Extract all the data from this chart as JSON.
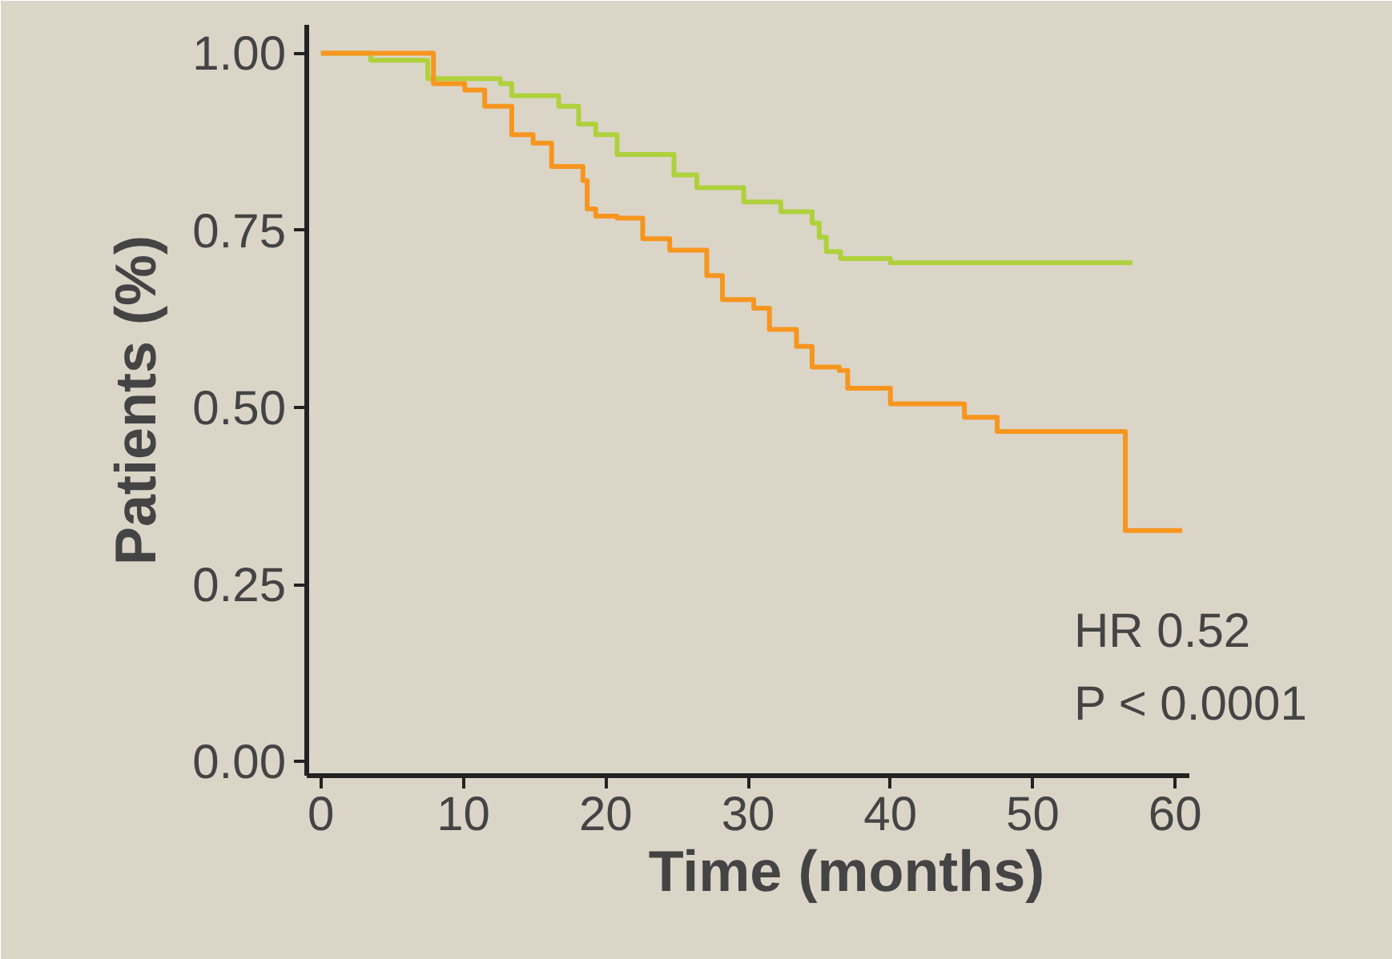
{
  "chart_data": {
    "type": "step",
    "xlabel": "Time (months)",
    "ylabel": "Patients (%)",
    "xlim": [
      -1,
      61
    ],
    "ylim": [
      -0.02,
      1.04
    ],
    "xticks": [
      0,
      10,
      20,
      30,
      40,
      50,
      60
    ],
    "yticks": [
      {
        "value": 0,
        "label": "0.00"
      },
      {
        "value": 0.25,
        "label": "0.25"
      },
      {
        "value": 0.5,
        "label": "0.50"
      },
      {
        "value": 0.75,
        "label": "0.75"
      },
      {
        "value": 1,
        "label": "1.00"
      }
    ],
    "grid": false,
    "marker": "none",
    "line_style": "solid",
    "annotations": [
      "HR 0.52",
      "P < 0.0001"
    ],
    "series": [
      {
        "color": "#afd13c",
        "x": [
          0,
          3,
          3.5,
          7.5,
          12.6,
          13.4,
          16.7,
          18.1,
          19.3,
          20.8,
          24.8,
          26.4,
          29.7,
          32.3,
          34.5,
          35,
          35.5,
          36.5,
          40,
          57
        ],
        "values": [
          1.0,
          1.0,
          0.99,
          0.964,
          0.957,
          0.94,
          0.925,
          0.9,
          0.885,
          0.857,
          0.828,
          0.81,
          0.79,
          0.776,
          0.76,
          0.74,
          0.72,
          0.71,
          0.704,
          0.704
        ]
      },
      {
        "color": "#f7961e",
        "x": [
          0,
          2.6,
          7.9,
          10.1,
          11.5,
          13.4,
          14.9,
          16.2,
          18.4,
          18.7,
          19.3,
          20.8,
          22.6,
          24.5,
          27.1,
          28.2,
          30.4,
          31.5,
          33.4,
          34.5,
          36.4,
          37,
          40,
          45.2,
          47.5,
          56.5,
          60.5
        ],
        "values": [
          1.0,
          1.0,
          0.957,
          0.948,
          0.925,
          0.885,
          0.873,
          0.84,
          0.82,
          0.78,
          0.77,
          0.767,
          0.738,
          0.722,
          0.686,
          0.652,
          0.64,
          0.61,
          0.586,
          0.557,
          0.552,
          0.527,
          0.505,
          0.486,
          0.466,
          0.326,
          0.326
        ]
      }
    ]
  }
}
